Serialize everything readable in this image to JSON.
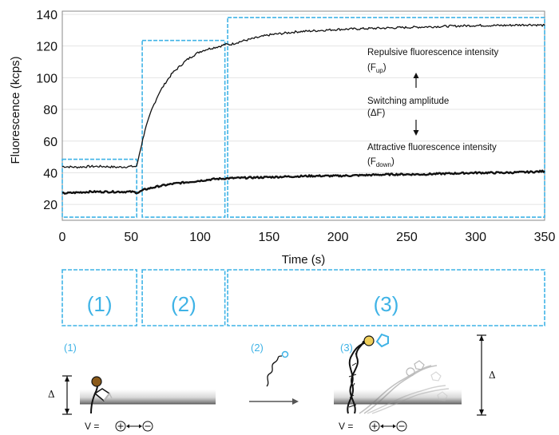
{
  "chart_data": {
    "type": "line",
    "xlabel": "Time (s)",
    "ylabel": "Fluorescence (kcps)",
    "xlim": [
      0,
      350
    ],
    "ylim": [
      10,
      142
    ],
    "x_ticks": [
      0,
      50,
      100,
      150,
      200,
      250,
      300,
      350
    ],
    "y_ticks": [
      20,
      40,
      60,
      80,
      100,
      120,
      140
    ],
    "grid": "horizontal",
    "series": [
      {
        "color": "#111111",
        "x": [
          0,
          10,
          20,
          30,
          40,
          50,
          54,
          56,
          60,
          65,
          70,
          75,
          80,
          85,
          90,
          95,
          100,
          105,
          110,
          115,
          118,
          122,
          130,
          140,
          150,
          160,
          170,
          180,
          200,
          220,
          240,
          260,
          280,
          300,
          320,
          340,
          350
        ],
        "y": [
          44,
          43.5,
          44,
          44,
          43.5,
          44,
          44,
          52,
          67,
          80,
          90,
          97,
          103,
          107,
          111,
          114,
          116.5,
          118,
          119,
          120,
          121,
          121,
          123,
          125,
          127,
          128,
          129,
          129.5,
          130.5,
          131,
          131.5,
          132,
          132.5,
          133,
          133,
          133.5,
          133
        ]
      },
      {
        "color": "#111111",
        "x": [
          0,
          10,
          20,
          30,
          40,
          50,
          55,
          60,
          70,
          80,
          90,
          100,
          110,
          120,
          140,
          160,
          180,
          200,
          220,
          240,
          260,
          280,
          300,
          320,
          340,
          350
        ],
        "y": [
          27,
          27.5,
          28,
          28,
          28,
          28,
          27.5,
          29.5,
          31.5,
          33,
          34,
          35,
          36,
          36.5,
          37,
          37.5,
          38,
          38,
          38.5,
          39,
          39,
          39.5,
          40,
          40,
          40.5,
          41
        ]
      }
    ],
    "phases": [
      {
        "label": "(1)",
        "x_start": 0,
        "x_end": 54
      },
      {
        "label": "(2)",
        "x_start": 58,
        "x_end": 118
      },
      {
        "label": "(3)",
        "x_start": 120,
        "x_end": 350
      }
    ],
    "annotations": {
      "up_title": "Repulsive fluorescence intensity",
      "up_symbol": "(F",
      "up_sub": "up",
      "up_close": ")",
      "switch_title": "Switching amplitude",
      "switch_symbol": "(ΔF)",
      "down_title": "Attractive fluorescence intensity",
      "down_symbol": "(F",
      "down_sub": "down",
      "down_close": ")"
    }
  },
  "schematic": {
    "label_1": "(1)",
    "label_2": "(2)",
    "label_3": "(3)",
    "delta_1": "Δ",
    "delta_3": "Δ",
    "voltage_1": "V =",
    "voltage_3": "V =",
    "colors": {
      "accent": "#3fb3e6",
      "dye_1": "#8b5a1a",
      "dye_3": "#f0cf5a"
    }
  }
}
